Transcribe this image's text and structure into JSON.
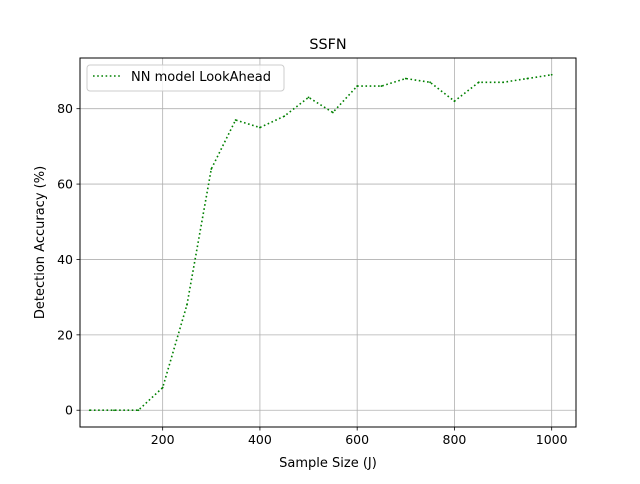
{
  "chart_data": {
    "type": "line",
    "title": "SSFN",
    "xlabel": "Sample Size (J)",
    "ylabel": "Detection Accuracy (%)",
    "xlim": [
      30,
      1050
    ],
    "ylim": [
      -4.45,
      93.45
    ],
    "xticks": [
      200,
      400,
      600,
      800,
      1000
    ],
    "yticks": [
      0,
      20,
      40,
      60,
      80
    ],
    "grid": true,
    "legend": "top-left",
    "series": [
      {
        "name": "NN model LookAhead",
        "color": "#008000",
        "style": "dotted",
        "x": [
          50,
          100,
          150,
          200,
          250,
          300,
          350,
          400,
          450,
          500,
          550,
          600,
          650,
          700,
          750,
          800,
          850,
          900,
          950,
          1000
        ],
        "y": [
          0,
          0,
          0,
          6,
          28,
          64,
          77,
          75,
          78,
          83,
          79,
          86,
          86,
          88,
          87,
          82,
          87,
          87,
          88,
          89
        ]
      }
    ]
  }
}
